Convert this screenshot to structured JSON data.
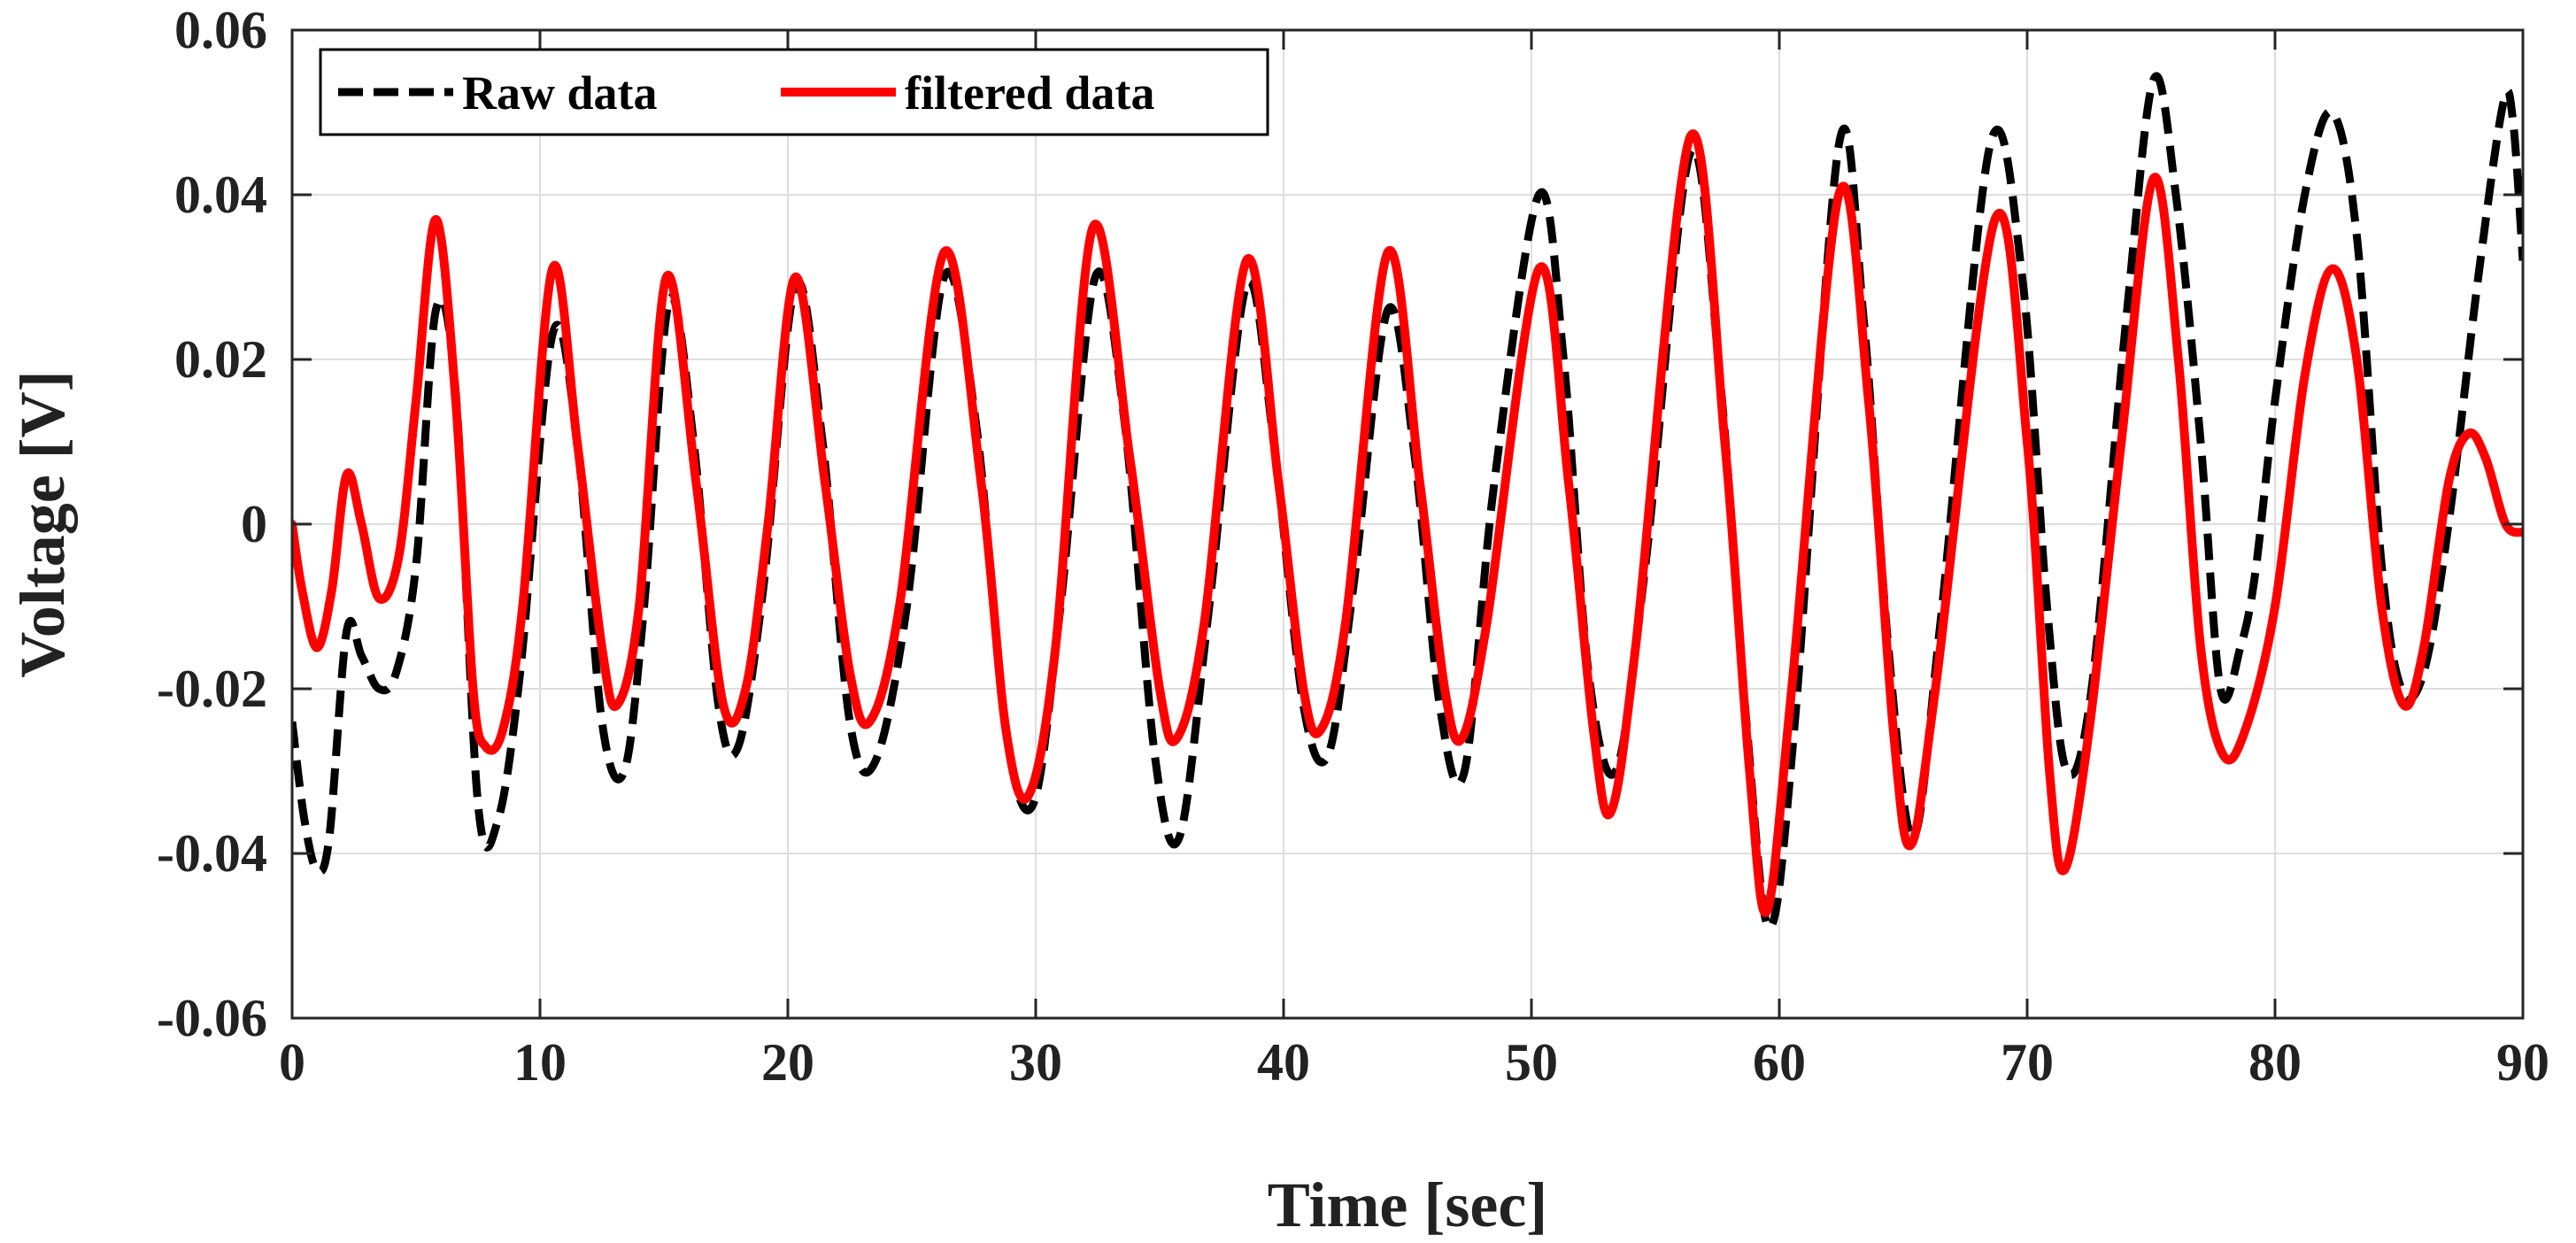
{
  "chart_data": {
    "type": "line",
    "title": "",
    "xlabel": "Time [sec]",
    "ylabel": "Voltage [V]",
    "xlim": [
      0,
      90
    ],
    "ylim": [
      -0.06,
      0.06
    ],
    "grid": true,
    "legend_position": "top-left",
    "x_ticks": [
      0,
      10,
      20,
      30,
      40,
      50,
      60,
      70,
      80,
      90
    ],
    "x_tick_labels": [
      "0",
      "10",
      "20",
      "30",
      "40",
      "50",
      "60",
      "70",
      "80",
      "90"
    ],
    "y_ticks": [
      -0.06,
      -0.04,
      -0.02,
      0,
      0.02,
      0.04,
      0.06
    ],
    "y_tick_labels": [
      "-0.06",
      "-0.04",
      "-0.02",
      "0",
      "0.02",
      "0.04",
      "0.06"
    ],
    "series": [
      {
        "name": "Raw data",
        "color": "#000000",
        "style": "dashed",
        "points": [
          [
            0,
            -0.024
          ],
          [
            0.5,
            -0.036
          ],
          [
            1.0,
            -0.042
          ],
          [
            1.5,
            -0.038
          ],
          [
            2.2,
            -0.013
          ],
          [
            2.8,
            -0.016
          ],
          [
            3.5,
            -0.02
          ],
          [
            4.2,
            -0.018
          ],
          [
            5.0,
            -0.005
          ],
          [
            5.8,
            0.026
          ],
          [
            6.6,
            0.016
          ],
          [
            7.5,
            -0.034
          ],
          [
            8.3,
            -0.036
          ],
          [
            9.2,
            -0.018
          ],
          [
            10.5,
            0.023
          ],
          [
            11.5,
            0.01
          ],
          [
            12.5,
            -0.024
          ],
          [
            13.4,
            -0.03
          ],
          [
            14.2,
            -0.01
          ],
          [
            15.2,
            0.027
          ],
          [
            16.2,
            0.01
          ],
          [
            17.2,
            -0.022
          ],
          [
            18.0,
            -0.027
          ],
          [
            19.0,
            -0.008
          ],
          [
            20.3,
            0.029
          ],
          [
            21.4,
            0.01
          ],
          [
            22.5,
            -0.024
          ],
          [
            23.5,
            -0.029
          ],
          [
            24.8,
            -0.01
          ],
          [
            26.3,
            0.03
          ],
          [
            27.6,
            0.012
          ],
          [
            28.8,
            -0.025
          ],
          [
            29.9,
            -0.034
          ],
          [
            31.0,
            -0.01
          ],
          [
            32.4,
            0.03
          ],
          [
            33.6,
            0.012
          ],
          [
            34.8,
            -0.028
          ],
          [
            35.8,
            -0.038
          ],
          [
            37.0,
            -0.01
          ],
          [
            38.5,
            0.029
          ],
          [
            39.6,
            0.01
          ],
          [
            40.8,
            -0.022
          ],
          [
            41.8,
            -0.028
          ],
          [
            42.8,
            -0.008
          ],
          [
            44.2,
            0.026
          ],
          [
            45.3,
            0.008
          ],
          [
            46.3,
            -0.022
          ],
          [
            47.3,
            -0.03
          ],
          [
            48.5,
            0.005
          ],
          [
            50.3,
            0.04
          ],
          [
            51.3,
            0.02
          ],
          [
            52.3,
            -0.018
          ],
          [
            53.4,
            -0.03
          ],
          [
            54.6,
            -0.005
          ],
          [
            56.4,
            0.045
          ],
          [
            57.6,
            0.018
          ],
          [
            58.7,
            -0.025
          ],
          [
            59.6,
            -0.049
          ],
          [
            60.6,
            -0.025
          ],
          [
            62.4,
            0.046
          ],
          [
            63.4,
            0.025
          ],
          [
            64.4,
            -0.015
          ],
          [
            65.4,
            -0.038
          ],
          [
            66.5,
            -0.012
          ],
          [
            68.5,
            0.046
          ],
          [
            69.8,
            0.03
          ],
          [
            70.8,
            -0.01
          ],
          [
            71.6,
            -0.03
          ],
          [
            72.6,
            -0.02
          ],
          [
            74.0,
            0.025
          ],
          [
            75.1,
            0.054
          ],
          [
            76.0,
            0.04
          ],
          [
            77.0,
            0.01
          ],
          [
            77.8,
            -0.02
          ],
          [
            78.6,
            -0.015
          ],
          [
            79.2,
            -0.006
          ],
          [
            80.0,
            0.015
          ],
          [
            81.2,
            0.04
          ],
          [
            82.3,
            0.05
          ],
          [
            83.3,
            0.035
          ],
          [
            84.3,
            -0.005
          ],
          [
            85.1,
            -0.02
          ],
          [
            86.0,
            -0.018
          ],
          [
            87.0,
            0.0
          ],
          [
            88.2,
            0.03
          ],
          [
            89.2,
            0.051
          ],
          [
            89.6,
            0.049
          ],
          [
            90,
            0.032
          ]
        ]
      },
      {
        "name": "filtered data",
        "color": "#ff0000",
        "style": "solid",
        "points": [
          [
            0,
            0.0
          ],
          [
            0.4,
            -0.008
          ],
          [
            1.0,
            -0.015
          ],
          [
            1.6,
            -0.008
          ],
          [
            2.2,
            0.006
          ],
          [
            2.8,
            0.0
          ],
          [
            3.5,
            -0.009
          ],
          [
            4.3,
            -0.004
          ],
          [
            5.0,
            0.015
          ],
          [
            5.8,
            0.037
          ],
          [
            6.6,
            0.015
          ],
          [
            7.3,
            -0.02
          ],
          [
            7.8,
            -0.027
          ],
          [
            8.5,
            -0.025
          ],
          [
            9.3,
            -0.01
          ],
          [
            10.5,
            0.031
          ],
          [
            11.5,
            0.01
          ],
          [
            12.5,
            -0.015
          ],
          [
            13.1,
            -0.022
          ],
          [
            14.0,
            -0.01
          ],
          [
            15.1,
            0.03
          ],
          [
            16.3,
            0.005
          ],
          [
            17.4,
            -0.022
          ],
          [
            18.3,
            -0.02
          ],
          [
            19.2,
            0.0
          ],
          [
            20.3,
            0.03
          ],
          [
            21.5,
            0.005
          ],
          [
            22.5,
            -0.018
          ],
          [
            23.3,
            -0.024
          ],
          [
            24.5,
            -0.01
          ],
          [
            26.3,
            0.033
          ],
          [
            27.8,
            0.005
          ],
          [
            28.8,
            -0.025
          ],
          [
            29.7,
            -0.033
          ],
          [
            30.8,
            -0.015
          ],
          [
            32.3,
            0.036
          ],
          [
            33.8,
            0.008
          ],
          [
            35.0,
            -0.02
          ],
          [
            35.7,
            -0.026
          ],
          [
            36.8,
            -0.012
          ],
          [
            38.5,
            0.032
          ],
          [
            39.8,
            0.005
          ],
          [
            40.8,
            -0.02
          ],
          [
            41.5,
            -0.025
          ],
          [
            42.5,
            -0.012
          ],
          [
            44.2,
            0.033
          ],
          [
            45.5,
            0.005
          ],
          [
            46.5,
            -0.02
          ],
          [
            47.2,
            -0.026
          ],
          [
            48.2,
            -0.012
          ],
          [
            50.3,
            0.031
          ],
          [
            51.5,
            0.005
          ],
          [
            52.5,
            -0.025
          ],
          [
            53.2,
            -0.035
          ],
          [
            54.2,
            -0.015
          ],
          [
            56.4,
            0.047
          ],
          [
            57.8,
            0.01
          ],
          [
            58.8,
            -0.03
          ],
          [
            59.5,
            -0.047
          ],
          [
            60.5,
            -0.02
          ],
          [
            62.4,
            0.04
          ],
          [
            63.6,
            0.015
          ],
          [
            64.6,
            -0.025
          ],
          [
            65.3,
            -0.039
          ],
          [
            66.3,
            -0.02
          ],
          [
            68.7,
            0.037
          ],
          [
            70.0,
            0.01
          ],
          [
            70.9,
            -0.03
          ],
          [
            71.5,
            -0.042
          ],
          [
            72.5,
            -0.025
          ],
          [
            73.8,
            0.01
          ],
          [
            75.1,
            0.042
          ],
          [
            76.1,
            0.02
          ],
          [
            77.0,
            -0.015
          ],
          [
            77.9,
            -0.028
          ],
          [
            78.8,
            -0.025
          ],
          [
            80.0,
            -0.01
          ],
          [
            81.2,
            0.018
          ],
          [
            82.3,
            0.031
          ],
          [
            83.3,
            0.02
          ],
          [
            84.3,
            -0.01
          ],
          [
            85.2,
            -0.022
          ],
          [
            86.0,
            -0.015
          ],
          [
            87.0,
            0.005
          ],
          [
            87.8,
            0.011
          ],
          [
            88.5,
            0.008
          ],
          [
            89.3,
            0.0
          ],
          [
            90,
            -0.001
          ]
        ]
      }
    ]
  }
}
